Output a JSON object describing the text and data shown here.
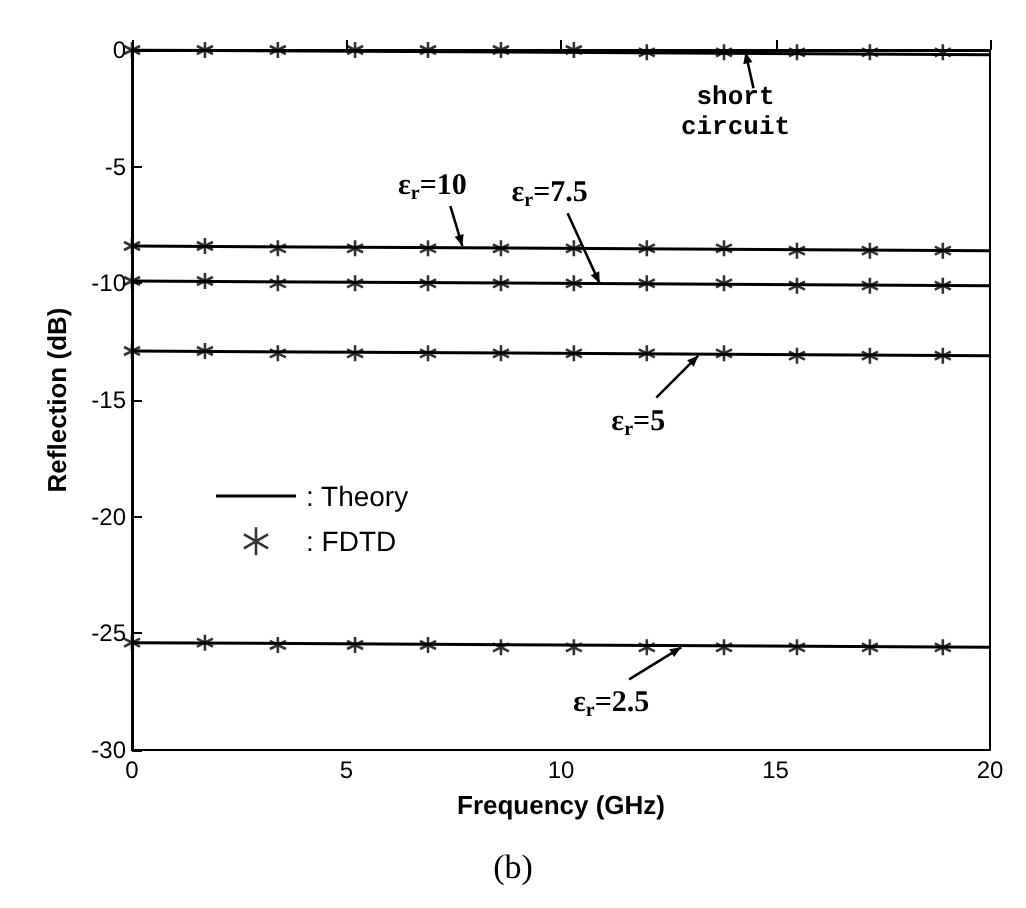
{
  "chart_data": {
    "type": "line",
    "xlabel": "Frequency (GHz)",
    "ylabel": "Reflection (dB)",
    "xlim": [
      0,
      20
    ],
    "xticks": [
      0,
      5,
      10,
      15,
      20
    ],
    "ylim": [
      -30,
      0
    ],
    "yticks": [
      -30,
      -25,
      -20,
      -15,
      -10,
      -5,
      0
    ],
    "grid": false,
    "legend": "left",
    "series": [
      {
        "name": ": Theory",
        "color": "#000000",
        "line_style": "solid",
        "marker": "none",
        "x": [
          0,
          20
        ],
        "values": [
          0,
          -0.2
        ]
      },
      {
        "color": "#000000",
        "line_style": "solid",
        "marker": "none",
        "x": [
          0,
          20
        ],
        "values": [
          -8.4,
          -8.6
        ]
      },
      {
        "color": "#000000",
        "line_style": "solid",
        "marker": "none",
        "x": [
          0,
          20
        ],
        "values": [
          -9.9,
          -10.1
        ]
      },
      {
        "color": "#000000",
        "line_style": "solid",
        "marker": "none",
        "x": [
          0,
          20
        ],
        "values": [
          -12.9,
          -13.1
        ]
      },
      {
        "color": "#000000",
        "line_style": "solid",
        "marker": "none",
        "x": [
          0,
          20
        ],
        "values": [
          -25.4,
          -25.6
        ]
      },
      {
        "name": ": FDTD",
        "type": "scatter",
        "color": "#000000",
        "marker": "cross",
        "x": [
          0,
          1.7,
          3.4,
          5.2,
          6.9,
          8.6,
          10.3,
          12,
          13.8,
          15.5,
          17.2,
          18.9
        ],
        "values": [
          0,
          0,
          0,
          0,
          0,
          0,
          0,
          -0.1,
          -0.1,
          -0.1,
          -0.1,
          -0.1
        ]
      },
      {
        "type": "scatter",
        "color": "#000000",
        "marker": "cross",
        "x": [
          0,
          1.7,
          3.4,
          5.2,
          6.9,
          8.6,
          10.3,
          12,
          13.8,
          15.5,
          17.2,
          18.9
        ],
        "values": [
          -8.4,
          -8.4,
          -8.5,
          -8.5,
          -8.5,
          -8.5,
          -8.5,
          -8.5,
          -8.5,
          -8.6,
          -8.6,
          -8.6
        ]
      },
      {
        "type": "scatter",
        "color": "#000000",
        "marker": "cross",
        "x": [
          0,
          1.7,
          3.4,
          5.2,
          6.9,
          8.6,
          10.3,
          12,
          13.8,
          15.5,
          17.2,
          18.9
        ],
        "values": [
          -9.9,
          -9.9,
          -10,
          -10,
          -10,
          -10,
          -10,
          -10,
          -10,
          -10.1,
          -10.1,
          -10.1
        ]
      },
      {
        "type": "scatter",
        "color": "#000000",
        "marker": "cross",
        "x": [
          0,
          1.7,
          3.4,
          5.2,
          6.9,
          8.6,
          10.3,
          12,
          13.8,
          15.5,
          17.2,
          18.9
        ],
        "values": [
          -12.9,
          -12.9,
          -13,
          -13,
          -13,
          -13,
          -13,
          -13,
          -13,
          -13.1,
          -13.1,
          -13.1
        ]
      },
      {
        "type": "scatter",
        "color": "#000000",
        "marker": "cross",
        "x": [
          0,
          1.7,
          3.4,
          5.2,
          6.9,
          8.6,
          10.3,
          12,
          13.8,
          15.5,
          17.2,
          18.9
        ],
        "values": [
          -25.4,
          -25.4,
          -25.5,
          -25.5,
          -25.5,
          -25.6,
          -25.6,
          -25.6,
          -25.6,
          -25.6,
          -25.6,
          -25.6
        ]
      }
    ],
    "annotations": [
      {
        "text": "short circuit",
        "x": 14.3,
        "y": -0.1
      },
      {
        "text": "ε$_{r}$=10",
        "x": 7.7,
        "y": -8.4
      },
      {
        "text": "ε$_{r}$=7.5",
        "x": 10.9,
        "y": -10
      },
      {
        "text": "ε$_{r}$=5",
        "x": 13.2,
        "y": -13.1
      },
      {
        "text": "ε$_{r}$=2.5",
        "x": 12.8,
        "y": -25.6
      },
      "(b)"
    ]
  }
}
